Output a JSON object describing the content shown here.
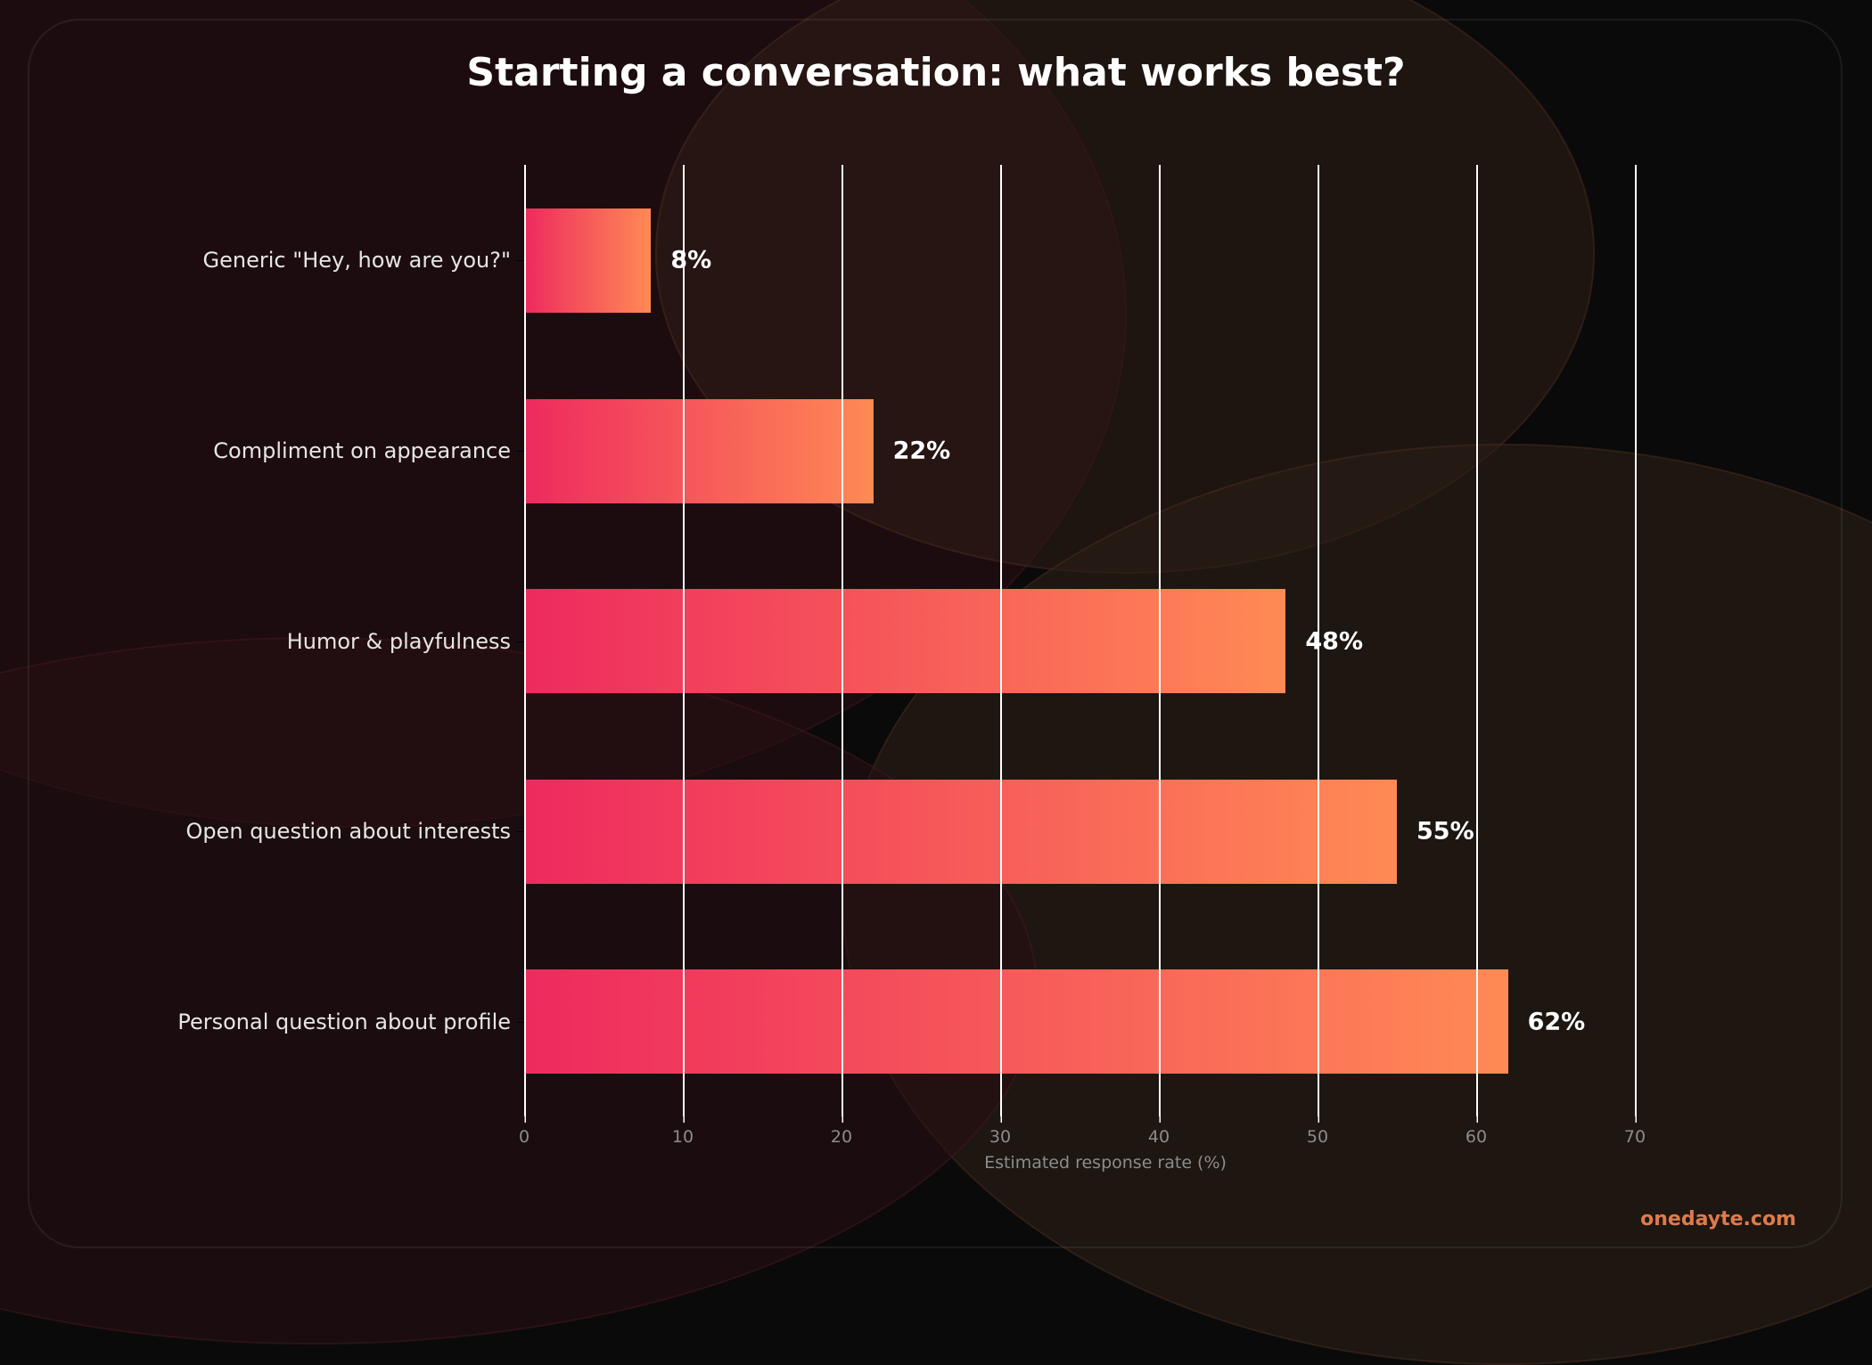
{
  "title": "Starting a conversation: what works best?",
  "watermark": "onedayte.com",
  "colors": {
    "bar_gradient_start": "#ee2a5e",
    "bar_gradient_end": "#ff8a55",
    "background": "#0a0a0a",
    "watermark": "#e07a4a"
  },
  "chart_data": {
    "type": "bar",
    "orientation": "horizontal",
    "title": "Starting a conversation: what works best?",
    "xlabel": "Estimated response rate (%)",
    "ylabel": "",
    "categories": [
      "Generic \"Hey, how are you?\"",
      "Compliment on appearance",
      "Humor & playfulness",
      "Open question about interests",
      "Personal question about profile"
    ],
    "values": [
      8,
      22,
      48,
      55,
      62
    ],
    "value_labels": [
      "8%",
      "22%",
      "48%",
      "55%",
      "62%"
    ],
    "xlim": [
      0,
      70
    ],
    "xticks": [
      "0",
      "10",
      "20",
      "30",
      "40",
      "50",
      "60",
      "70"
    ],
    "grid": "vertical",
    "legend": "none"
  }
}
